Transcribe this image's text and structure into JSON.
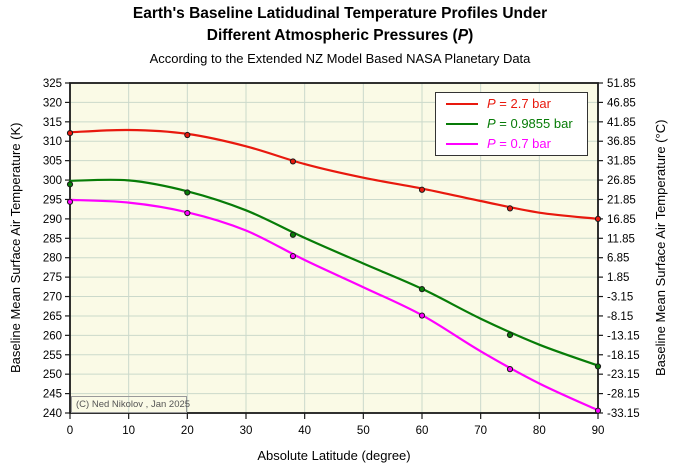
{
  "header": {
    "title_line1": "Earth's Baseline Latidudinal Temperature Profiles Under",
    "title_line2_prefix": "Different Atmospheric Pressures (",
    "title_line2_symbol": "P",
    "title_line2_suffix": ")",
    "subtitle": "According to the Extended NZ Model Based NASA Planetary Data"
  },
  "chart_data": {
    "type": "line",
    "title": "Earth's Baseline Latidudinal Temperature Profiles Under Different Atmospheric Pressures (P)",
    "subtitle": "According to the Extended NZ Model Based NASA Planetary Data",
    "xlabel": "Absolute Latitude (degree)",
    "ylabel_left": "Baseline Mean Surface Air Temperature (K)",
    "ylabel_right": "Baseline Mean Surface Air Temperature (°C)",
    "xlim": [
      0,
      90
    ],
    "ylim_left": [
      240,
      325
    ],
    "ylim_right": [
      -33.15,
      51.85
    ],
    "x_ticks": [
      0,
      10,
      20,
      30,
      40,
      50,
      60,
      70,
      80,
      90
    ],
    "y_ticks_left": [
      325,
      320,
      315,
      310,
      305,
      300,
      295,
      290,
      285,
      280,
      275,
      270,
      265,
      260,
      255,
      250,
      245,
      240
    ],
    "y_ticks_right": [
      "51.85",
      "46.85",
      "41.85",
      "36.85",
      "31.85",
      "26.85",
      "21.85",
      "16.85",
      "11.85",
      "6.85",
      "1.85",
      "-3.15",
      "-8.15",
      "-13.15",
      "-18.15",
      "-23.15",
      "-28.15",
      "-33.15"
    ],
    "grid": true,
    "legend_position": "top-right",
    "series": [
      {
        "label": "P = 2.7 bar",
        "symbol": "P",
        "label_rest": " = 2.7 bar",
        "color": "#E8190E",
        "data_points": {
          "x": [
            0,
            20,
            38,
            60,
            75,
            90
          ],
          "y_K": [
            312.1,
            311.6,
            304.8,
            297.5,
            292.7,
            290.0
          ]
        },
        "fit_curve": {
          "x": [
            0,
            10,
            20,
            30,
            40,
            50,
            60,
            70,
            80,
            90
          ],
          "y_K": [
            312.3,
            312.9,
            311.9,
            308.7,
            304.1,
            300.6,
            297.8,
            294.6,
            291.6,
            290.0
          ]
        }
      },
      {
        "label": "P = 0.9855 bar",
        "symbol": "P",
        "label_rest": " = 0.9855 bar",
        "color": "#077C07",
        "data_points": {
          "x": [
            0,
            20,
            38,
            60,
            75,
            90
          ],
          "y_K": [
            298.9,
            296.8,
            285.9,
            271.9,
            260.1,
            252.0
          ]
        },
        "fit_curve": {
          "x": [
            0,
            10,
            20,
            30,
            40,
            50,
            60,
            70,
            80,
            90
          ],
          "y_K": [
            299.8,
            299.9,
            297.1,
            292.2,
            285.1,
            278.5,
            272.0,
            264.3,
            257.6,
            252.2
          ]
        }
      },
      {
        "label": "P = 0.7 bar",
        "symbol": "P",
        "label_rest": " = 0.7 bar",
        "color": "#FF00FF",
        "data_points": {
          "x": [
            0,
            20,
            38,
            60,
            75,
            90
          ],
          "y_K": [
            294.4,
            291.5,
            280.4,
            265.1,
            251.3,
            240.6
          ]
        },
        "fit_curve": {
          "x": [
            0,
            10,
            20,
            30,
            40,
            50,
            60,
            70,
            80,
            90
          ],
          "y_K": [
            294.9,
            294.2,
            291.7,
            287.0,
            279.4,
            272.4,
            265.2,
            255.9,
            247.6,
            240.7
          ]
        }
      }
    ],
    "annotation": "(C) Ned Nikolov , Jan 2025",
    "style": {
      "plot_bg": "#FAFAE6",
      "grid_color": "#CBD9CB",
      "frame_color": "#1A1A1A",
      "tick_color": "#1A1A1A",
      "marker_outline": "#1A1A1A"
    }
  }
}
